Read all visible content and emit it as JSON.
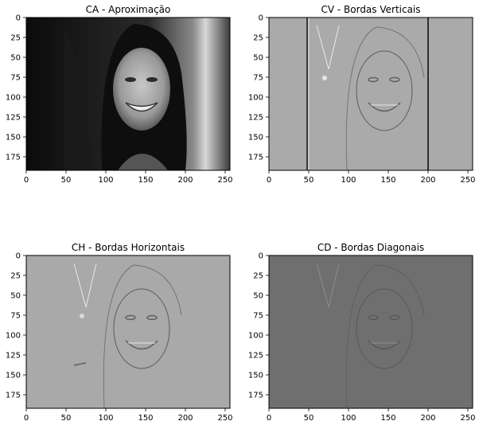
{
  "panels": [
    {
      "id": "ca",
      "title": "CA - Aproximação",
      "x_ticks": [
        "0",
        "50",
        "100",
        "150",
        "200",
        "250"
      ],
      "y_ticks": [
        "0",
        "25",
        "50",
        "75",
        "100",
        "125",
        "150",
        "175"
      ],
      "image_width": 256,
      "image_height": 192,
      "image_kind": "approximation",
      "background_color": "#141414"
    },
    {
      "id": "cv",
      "title": "CV - Bordas Verticais",
      "x_ticks": [
        "0",
        "50",
        "100",
        "150",
        "200",
        "250"
      ],
      "y_ticks": [
        "0",
        "25",
        "50",
        "75",
        "100",
        "125",
        "150",
        "175"
      ],
      "image_width": 256,
      "image_height": 192,
      "image_kind": "vertical-edges",
      "background_color": "#aaaaaa"
    },
    {
      "id": "ch",
      "title": "CH - Bordas Horizontais",
      "x_ticks": [
        "0",
        "50",
        "100",
        "150",
        "200",
        "250"
      ],
      "y_ticks": [
        "0",
        "25",
        "50",
        "75",
        "100",
        "125",
        "150",
        "175"
      ],
      "image_width": 256,
      "image_height": 192,
      "image_kind": "horizontal-edges",
      "background_color": "#a9a9a9"
    },
    {
      "id": "cd",
      "title": "CD - Bordas Diagonais",
      "x_ticks": [
        "0",
        "50",
        "100",
        "150",
        "200",
        "250"
      ],
      "y_ticks": [
        "0",
        "25",
        "50",
        "75",
        "100",
        "125",
        "150",
        "175"
      ],
      "image_width": 256,
      "image_height": 192,
      "image_kind": "diagonal-edges",
      "background_color": "#6f6f6f"
    }
  ]
}
